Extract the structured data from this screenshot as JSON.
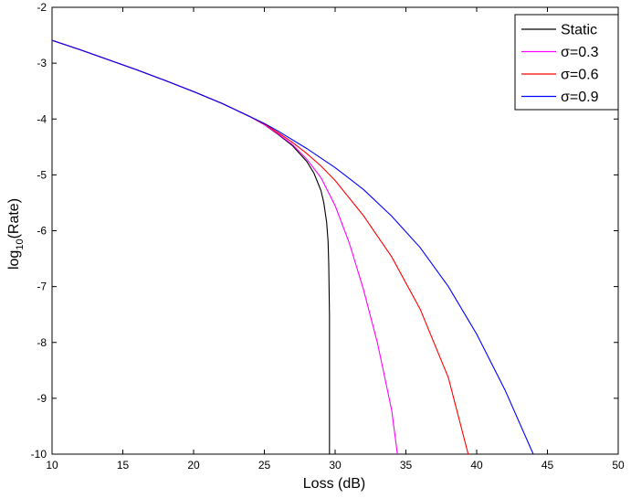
{
  "chart_data": {
    "type": "line",
    "title": "",
    "xlabel": "Loss (dB)",
    "ylabel": {
      "base": "log",
      "sub": "10",
      "rest": "(Rate)"
    },
    "xlim": [
      10,
      50
    ],
    "ylim": [
      -10,
      -2
    ],
    "xticks": [
      10,
      15,
      20,
      25,
      30,
      35,
      40,
      45,
      50
    ],
    "yticks": [
      -2,
      -3,
      -4,
      -5,
      -6,
      -7,
      -8,
      -9,
      -10
    ],
    "grid": false,
    "legend_position": "top-right",
    "series": [
      {
        "name": "Static",
        "color": "#000000",
        "x": [
          10,
          12,
          14,
          16,
          18,
          20,
          22,
          24,
          25,
          26,
          27,
          28,
          28.5,
          29,
          29.2,
          29.4,
          29.5,
          29.55,
          29.6,
          29.6
        ],
        "y": [
          -2.59,
          -2.76,
          -2.94,
          -3.12,
          -3.31,
          -3.51,
          -3.72,
          -3.96,
          -4.1,
          -4.28,
          -4.48,
          -4.76,
          -4.97,
          -5.28,
          -5.5,
          -5.85,
          -6.2,
          -6.6,
          -7.5,
          -10
        ]
      },
      {
        "name": "σ=0.3",
        "color": "#ff00ff",
        "x": [
          10,
          12,
          14,
          16,
          18,
          20,
          22,
          24,
          25,
          26,
          27,
          28,
          29,
          30,
          31,
          32,
          33,
          34,
          34.4
        ],
        "y": [
          -2.59,
          -2.76,
          -2.94,
          -3.12,
          -3.31,
          -3.51,
          -3.72,
          -3.96,
          -4.1,
          -4.27,
          -4.46,
          -4.72,
          -5.05,
          -5.55,
          -6.22,
          -7.05,
          -8.02,
          -9.22,
          -10
        ]
      },
      {
        "name": "σ=0.6",
        "color": "#ff0000",
        "x": [
          10,
          12,
          14,
          16,
          18,
          20,
          22,
          24,
          25,
          26,
          27,
          28,
          29,
          30,
          32,
          34,
          36,
          38,
          39.4
        ],
        "y": [
          -2.59,
          -2.76,
          -2.94,
          -3.12,
          -3.31,
          -3.51,
          -3.72,
          -3.96,
          -4.09,
          -4.25,
          -4.42,
          -4.62,
          -4.84,
          -5.1,
          -5.73,
          -6.47,
          -7.4,
          -8.63,
          -10
        ]
      },
      {
        "name": "σ=0.9",
        "color": "#0000ff",
        "x": [
          10,
          12,
          14,
          16,
          18,
          20,
          22,
          24,
          25,
          26,
          28,
          30,
          32,
          34,
          36,
          38,
          40,
          42,
          44
        ],
        "y": [
          -2.59,
          -2.76,
          -2.94,
          -3.12,
          -3.31,
          -3.51,
          -3.72,
          -3.96,
          -4.08,
          -4.22,
          -4.53,
          -4.87,
          -5.26,
          -5.74,
          -6.3,
          -7.0,
          -7.85,
          -8.85,
          -10
        ]
      }
    ]
  }
}
